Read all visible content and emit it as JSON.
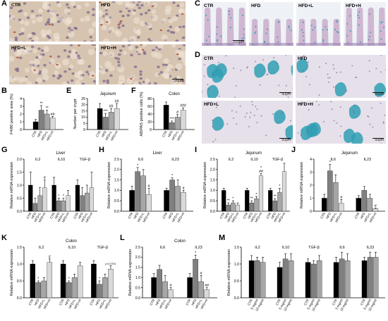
{
  "panel_letters": {
    "A": "A",
    "B": "B",
    "C": "C",
    "D": "D",
    "E": "E",
    "F": "F",
    "G": "G",
    "H": "H",
    "I": "I",
    "J": "J",
    "K": "K",
    "L": "L",
    "M": "M"
  },
  "micro_a": {
    "tiles": [
      {
        "label": "CTR",
        "scale": ""
      },
      {
        "label": "HFD",
        "scale": ""
      },
      {
        "label": "HFD+L",
        "scale": ""
      },
      {
        "label": "HFD+H",
        "scale": "20μm"
      }
    ]
  },
  "micro_c": {
    "tiles": [
      {
        "label": "CTR",
        "scale": "100μm"
      },
      {
        "label": "HFD",
        "scale": ""
      },
      {
        "label": "HFD+L",
        "scale": ""
      },
      {
        "label": "HFD+H",
        "scale": ""
      }
    ]
  },
  "micro_d": {
    "tiles": [
      {
        "label": "CTR",
        "scale": "50μm"
      },
      {
        "label": "HFD",
        "scale": "50μm"
      },
      {
        "label": "HFD+L",
        "scale": "50μm"
      },
      {
        "label": "HFD+H",
        "scale": "50μm"
      }
    ]
  },
  "colors": {
    "ctr": "#000000",
    "hfd": "#808080",
    "hfdl": "#a6a6a6",
    "hfdh": "#d9d9d9",
    "ihc_bg": "#d7c4b0",
    "nucleus": "#7d6a8e",
    "brown": "#b5553a",
    "alcian": "#2f9fb4",
    "crypt_pink": "#c8a8c8"
  },
  "chart_data": [
    {
      "id": "B",
      "type": "bar",
      "title": "",
      "ylabel": "F4/80 positive area (%)",
      "ylim": [
        0,
        4
      ],
      "yticks": [
        "0",
        "1",
        "2",
        "3",
        "4"
      ],
      "categories": [
        "CTR",
        "HFD",
        "HFD+L",
        "HFD+H"
      ],
      "groups": [
        {
          "name": "",
          "values": [
            1.0,
            2.5,
            2.0,
            1.5
          ],
          "errors": [
            0.3,
            0.6,
            0.5,
            0.2
          ],
          "sig": [
            "",
            "**",
            "**",
            "##"
          ]
        }
      ]
    },
    {
      "id": "E",
      "type": "bar",
      "title": "Jejunum",
      "ylabel": "Number per crypt",
      "ylim": [
        0,
        25
      ],
      "yticks": [
        "0",
        "5",
        "10",
        "15",
        "20",
        "25"
      ],
      "categories": [
        "CTR",
        "HFD",
        "HFD+L",
        "HFD+H"
      ],
      "groups": [
        {
          "name": "",
          "values": [
            17,
            10,
            14,
            17
          ],
          "errors": [
            4,
            3,
            3,
            4
          ],
          "sig": [
            "",
            "***",
            "##",
            "##"
          ]
        }
      ]
    },
    {
      "id": "F",
      "type": "bar",
      "title": "Colon",
      "ylabel": "AB/PAS positive cells (%)",
      "ylim": [
        0,
        80
      ],
      "yticks": [
        "0",
        "20",
        "40",
        "60",
        "80"
      ],
      "categories": [
        "CTR",
        "HFD",
        "HFD+L",
        "HFD+H"
      ],
      "groups": [
        {
          "name": "",
          "values": [
            63,
            18,
            32,
            50
          ],
          "errors": [
            8,
            4,
            7,
            6
          ],
          "sig": [
            "",
            "***",
            "#",
            "###"
          ]
        }
      ]
    },
    {
      "id": "G",
      "type": "bar",
      "title": "Liver",
      "ylabel": "Relative mRNA expression",
      "ylim": [
        0,
        2.0
      ],
      "yticks": [
        "0.0",
        "0.5",
        "1.0",
        "1.5",
        "2.0"
      ],
      "categories": [
        "CTR",
        "HFD",
        "HFD+L",
        "HFD+H"
      ],
      "groups": [
        {
          "name": "IL2",
          "values": [
            1.0,
            0.3,
            0.6,
            0.9
          ],
          "errors": [
            0.5,
            0.2,
            0.3,
            0.3
          ],
          "sig": [
            "",
            "",
            "",
            "#"
          ]
        },
        {
          "name": "IL10",
          "values": [
            1.0,
            0.4,
            0.4,
            0.6
          ],
          "errors": [
            0.3,
            0.1,
            0.1,
            0.2
          ],
          "sig": [
            "",
            "*",
            "*",
            ""
          ]
        },
        {
          "name": "TGF-β",
          "values": [
            1.0,
            0.6,
            0.7,
            0.9
          ],
          "errors": [
            0.2,
            0.3,
            0.3,
            0.6
          ],
          "sig": [
            "",
            "",
            "",
            ""
          ]
        }
      ]
    },
    {
      "id": "H",
      "type": "bar",
      "title": "Liver",
      "ylabel": "Relative mRNA expression",
      "ylim": [
        0,
        2.5
      ],
      "yticks": [
        "0.0",
        "0.5",
        "1.0",
        "1.5",
        "2.0",
        "2.5"
      ],
      "categories": [
        "CTR",
        "HFD",
        "HFD+L",
        "HFD+H"
      ],
      "groups": [
        {
          "name": "IL6",
          "values": [
            1.0,
            1.9,
            1.7,
            0.8
          ],
          "errors": [
            0.2,
            0.2,
            0.3,
            0.3
          ],
          "sig": [
            "",
            "*",
            "",
            "#"
          ]
        },
        {
          "name": "IL23",
          "values": [
            1.0,
            1.5,
            1.2,
            0.9
          ],
          "errors": [
            0.1,
            0.1,
            0.3,
            0.1
          ],
          "sig": [
            "",
            "*",
            "",
            "#"
          ]
        }
      ]
    },
    {
      "id": "I",
      "type": "bar",
      "title": "Jejunum",
      "ylabel": "Relative mRNA expression",
      "ylim": [
        0,
        2.5
      ],
      "yticks": [
        "0.0",
        "0.5",
        "1.0",
        "1.5",
        "2.0",
        "2.5"
      ],
      "categories": [
        "CTR",
        "HFD",
        "HFD+L",
        "HFD+H"
      ],
      "groups": [
        {
          "name": "IL2",
          "values": [
            1.0,
            0.3,
            0.4,
            0.3
          ],
          "errors": [
            0.1,
            0.1,
            0.1,
            0.1
          ],
          "sig": [
            "",
            "**",
            "*",
            ""
          ]
        },
        {
          "name": "IL10",
          "values": [
            1.0,
            0.4,
            0.6,
            1.7
          ],
          "errors": [
            0.1,
            0.1,
            0.1,
            0.1
          ],
          "sig": [
            "",
            "**",
            "*",
            "*\n##"
          ]
        },
        {
          "name": "TGF-β",
          "values": [
            1.0,
            0.5,
            0.9,
            1.9
          ],
          "errors": [
            0.1,
            0.1,
            0.2,
            0.4
          ],
          "sig": [
            "",
            "**",
            "*",
            ""
          ]
        }
      ]
    },
    {
      "id": "J",
      "type": "bar",
      "title": "Jejunum",
      "ylabel": "Relative mRNA expression",
      "ylim": [
        0,
        4
      ],
      "yticks": [
        "0",
        "1",
        "2",
        "3",
        "4"
      ],
      "categories": [
        "CTR",
        "HFD",
        "HFD+L",
        "HFD+H"
      ],
      "groups": [
        {
          "name": "IL6",
          "values": [
            1.0,
            3.1,
            2.2,
            0.6
          ],
          "errors": [
            0.3,
            0.5,
            0.6,
            0.3
          ],
          "sig": [
            "",
            "*",
            "",
            "#"
          ]
        },
        {
          "name": "IL23",
          "values": [
            1.0,
            1.6,
            1.0,
            0.2
          ],
          "errors": [
            0.2,
            0.3,
            0.3,
            0.05
          ],
          "sig": [
            "",
            "",
            "",
            "#"
          ]
        }
      ]
    },
    {
      "id": "K",
      "type": "bar",
      "title": "Colon",
      "ylabel": "Relative mRNA expression",
      "ylim": [
        0,
        1.5
      ],
      "yticks": [
        "0.0",
        "0.5",
        "1.0",
        "1.5"
      ],
      "categories": [
        "CTR",
        "HFD",
        "HFD+L",
        "HFD+H"
      ],
      "groups": [
        {
          "name": "IL2",
          "values": [
            1.0,
            0.45,
            0.5,
            1.05
          ],
          "errors": [
            0.1,
            0.05,
            0.1,
            0.1
          ],
          "sig": [
            "",
            "*",
            "",
            "#"
          ]
        },
        {
          "name": "IL10",
          "values": [
            1.0,
            0.45,
            0.6,
            0.95
          ],
          "errors": [
            0.1,
            0.05,
            0.1,
            0.1
          ],
          "sig": [
            "",
            "*",
            "",
            ""
          ]
        },
        {
          "name": "TGF-β",
          "values": [
            1.0,
            0.4,
            0.6,
            0.85
          ],
          "errors": [
            0.1,
            0.1,
            0.1,
            0.1
          ],
          "sig": [
            "",
            "*",
            "",
            "p=0.0701"
          ]
        }
      ]
    },
    {
      "id": "L",
      "type": "bar",
      "title": "Colon",
      "ylabel": "Relative mRNA expression",
      "ylim": [
        0,
        2.5
      ],
      "yticks": [
        "0.0",
        "0.5",
        "1.0",
        "1.5",
        "2.0",
        "2.5"
      ],
      "categories": [
        "CTR",
        "HFD",
        "HFD+L",
        "HFD+H"
      ],
      "groups": [
        {
          "name": "IL6",
          "values": [
            1.0,
            1.4,
            0.8,
            0.4
          ],
          "errors": [
            0.2,
            0.2,
            0.3,
            0.1
          ],
          "sig": [
            "",
            "",
            "",
            "#"
          ]
        },
        {
          "name": "IL23",
          "values": [
            1.0,
            1.9,
            0.8,
            0.4
          ],
          "errors": [
            0.2,
            0.2,
            0.3,
            0.1
          ],
          "sig": [
            "",
            "*",
            "#",
            "##"
          ]
        }
      ]
    },
    {
      "id": "M",
      "type": "bar",
      "title": "",
      "ylabel": "Relative mRNA expression",
      "ylim": [
        0,
        1.5
      ],
      "yticks": [
        "0.0",
        "0.5",
        "1.0",
        "1.5"
      ],
      "categories": [
        "CTR",
        "5 mg/ml",
        "10 mg/ml"
      ],
      "groups": [
        {
          "name": "IL2",
          "values": [
            1.1,
            1.1,
            1.05
          ],
          "errors": [
            0.15,
            0.1,
            0.15
          ],
          "sig": [
            "",
            "",
            ""
          ]
        },
        {
          "name": "IL10",
          "values": [
            0.9,
            1.15,
            1.1
          ],
          "errors": [
            0.15,
            0.15,
            0.2
          ],
          "sig": [
            "",
            "",
            ""
          ]
        },
        {
          "name": "TGF-β",
          "values": [
            1.05,
            1.0,
            1.1
          ],
          "errors": [
            0.1,
            0.1,
            0.15
          ],
          "sig": [
            "",
            "",
            ""
          ]
        },
        {
          "name": "IL6",
          "values": [
            1.05,
            1.15,
            1.1
          ],
          "errors": [
            0.15,
            0.2,
            0.2
          ],
          "sig": [
            "",
            "",
            ""
          ]
        },
        {
          "name": "IL23",
          "values": [
            1.1,
            1.2,
            1.2
          ],
          "errors": [
            0.1,
            0.15,
            0.15
          ],
          "sig": [
            "",
            "",
            ""
          ]
        }
      ]
    }
  ]
}
